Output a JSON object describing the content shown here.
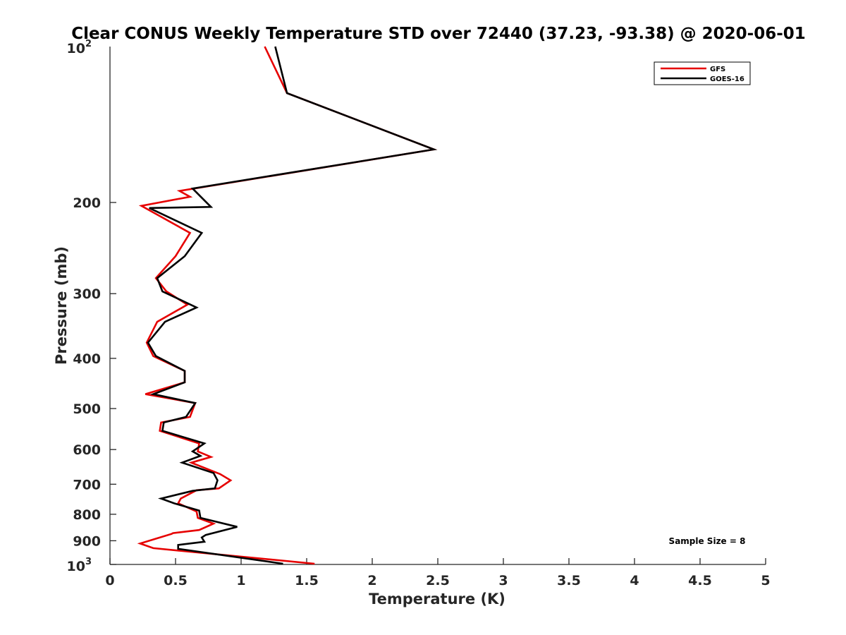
{
  "chart_data": {
    "type": "line",
    "title": "Clear CONUS Weekly Temperature STD over 72440 (37.23, -93.38) @ 2020-06-01",
    "xlabel": "Temperature (K)",
    "ylabel": "Pressure (mb)",
    "xlim": [
      0,
      5
    ],
    "ylim": [
      100,
      1000
    ],
    "y_scale": "log",
    "y_reversed": true,
    "x_ticks": [
      "0",
      "0.5",
      "1",
      "1.5",
      "2",
      "2.5",
      "3",
      "3.5",
      "4",
      "4.5",
      "5"
    ],
    "y_ticks": [
      {
        "value": 200,
        "label": "200"
      },
      {
        "value": 300,
        "label": "300"
      },
      {
        "value": 400,
        "label": "400"
      },
      {
        "value": 500,
        "label": "500"
      },
      {
        "value": 600,
        "label": "600"
      },
      {
        "value": 700,
        "label": "700"
      },
      {
        "value": 800,
        "label": "800"
      },
      {
        "value": 900,
        "label": "900"
      }
    ],
    "y_power_ticks": [
      {
        "value": 100,
        "base": "10",
        "exp": "2"
      },
      {
        "value": 1000,
        "base": "10",
        "exp": "3"
      }
    ],
    "legend_position": "top-right",
    "grid": false,
    "annotation": "Sample Size = 8",
    "series": [
      {
        "name": "GFS",
        "color": "#e60000",
        "x": [
          1.18,
          1.35,
          2.47,
          0.53,
          0.61,
          0.24,
          0.61,
          0.5,
          0.35,
          0.43,
          0.59,
          0.36,
          0.28,
          0.33,
          0.57,
          0.57,
          0.27,
          0.65,
          0.61,
          0.39,
          0.38,
          0.68,
          0.67,
          0.77,
          0.62,
          0.84,
          0.92,
          0.83,
          0.66,
          0.54,
          0.52,
          0.66,
          0.67,
          0.79,
          0.68,
          0.48,
          0.47,
          0.23,
          0.33,
          1.56
        ],
        "y": [
          100,
          123,
          158,
          190,
          195,
          203,
          229,
          254,
          280,
          297,
          315,
          340,
          373,
          396,
          423,
          445,
          469,
          488,
          519,
          532,
          552,
          584,
          605,
          620,
          636,
          669,
          688,
          713,
          719,
          746,
          762,
          790,
          813,
          834,
          858,
          870,
          873,
          911,
          930,
          997
        ]
      },
      {
        "name": "GOES-16",
        "color": "#000000",
        "x": [
          1.26,
          1.35,
          2.47,
          0.63,
          0.77,
          0.3,
          0.7,
          0.57,
          0.36,
          0.4,
          0.66,
          0.42,
          0.29,
          0.35,
          0.57,
          0.57,
          0.33,
          0.65,
          0.58,
          0.41,
          0.4,
          0.72,
          0.63,
          0.69,
          0.55,
          0.79,
          0.82,
          0.8,
          0.63,
          0.39,
          0.49,
          0.68,
          0.69,
          0.97,
          0.73,
          0.7,
          0.72,
          0.52,
          0.52,
          1.32
        ],
        "y": [
          100,
          123,
          158,
          188,
          204,
          205,
          229,
          254,
          280,
          297,
          319,
          340,
          373,
          396,
          423,
          445,
          469,
          488,
          519,
          532,
          552,
          584,
          605,
          617,
          636,
          666,
          688,
          713,
          721,
          746,
          762,
          787,
          813,
          846,
          877,
          887,
          904,
          917,
          933,
          997
        ]
      }
    ]
  }
}
